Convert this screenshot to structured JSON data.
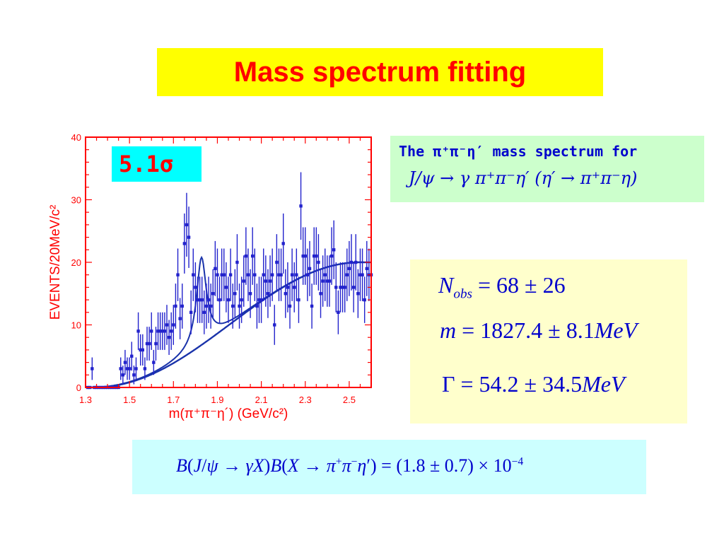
{
  "title": "Mass spectrum fitting",
  "significance": "5.1σ",
  "description": {
    "line1": "The π⁺π⁻η′ mass spectrum for",
    "line2": "J/ψ → γ π⁺π⁻η′   (η′ → π⁺π⁻η)"
  },
  "results": {
    "nobs": "N_obs = 68 ± 26",
    "mass": "m = 1827.4 ± 8.1 MeV",
    "width": "Γ = 54.2 ± 34.5 MeV"
  },
  "branching": "B(J/ψ → γX) B(X → π⁺π⁻η′) = (1.8 ± 0.7) × 10⁻⁴",
  "colors": {
    "title_bg": "#ffff00",
    "title_text": "#ff0000",
    "axis": "#ff0000",
    "data": "#2222cc",
    "fit": "#1a33aa"
  },
  "chart_data": {
    "type": "scatter",
    "xlabel": "m(π⁺π⁻η´)  (GeV/c²)",
    "ylabel": "EVENTS/20MeV/c²",
    "xlim": [
      1.3,
      2.6
    ],
    "ylim": [
      0,
      40
    ],
    "xticks": [
      1.3,
      1.5,
      1.7,
      1.9,
      2.1,
      2.3,
      2.5
    ],
    "yticks": [
      0,
      10,
      20,
      30,
      40
    ],
    "x": [
      1.31,
      1.32,
      1.33,
      1.34,
      1.35,
      1.36,
      1.37,
      1.38,
      1.39,
      1.4,
      1.41,
      1.42,
      1.43,
      1.44,
      1.45,
      1.46,
      1.47,
      1.48,
      1.49,
      1.5,
      1.51,
      1.52,
      1.53,
      1.54,
      1.55,
      1.56,
      1.57,
      1.58,
      1.59,
      1.6,
      1.61,
      1.62,
      1.63,
      1.64,
      1.65,
      1.66,
      1.67,
      1.68,
      1.69,
      1.7,
      1.71,
      1.72,
      1.73,
      1.74,
      1.75,
      1.76,
      1.77,
      1.78,
      1.79,
      1.8,
      1.81,
      1.82,
      1.83,
      1.84,
      1.85,
      1.86,
      1.87,
      1.88,
      1.89,
      1.9,
      1.91,
      1.92,
      1.93,
      1.94,
      1.95,
      1.96,
      1.97,
      1.98,
      1.99,
      2.0,
      2.01,
      2.02,
      2.03,
      2.04,
      2.05,
      2.06,
      2.07,
      2.08,
      2.09,
      2.1,
      2.11,
      2.12,
      2.13,
      2.14,
      2.15,
      2.16,
      2.17,
      2.18,
      2.19,
      2.2,
      2.21,
      2.22,
      2.23,
      2.24,
      2.25,
      2.26,
      2.27,
      2.28,
      2.29,
      2.3,
      2.31,
      2.32,
      2.33,
      2.34,
      2.35,
      2.36,
      2.37,
      2.38,
      2.39,
      2.4,
      2.41,
      2.42,
      2.43,
      2.44,
      2.45,
      2.46,
      2.47,
      2.48,
      2.49,
      2.5,
      2.51,
      2.52,
      2.53,
      2.54,
      2.55,
      2.56,
      2.57,
      2.58,
      2.59,
      2.6
    ],
    "series": [
      {
        "values": [
          0,
          0,
          3,
          0,
          0,
          0,
          0,
          0,
          0,
          0,
          0,
          0,
          0,
          0,
          0,
          3,
          2,
          4,
          3,
          3,
          5,
          2,
          3,
          9,
          6,
          6,
          3,
          7,
          7,
          9,
          4,
          7,
          9,
          9,
          9,
          9,
          10,
          8,
          9,
          10,
          13,
          18,
          11,
          13,
          23,
          26,
          24,
          12,
          18,
          16,
          14,
          14,
          14,
          12,
          13,
          14,
          13,
          15,
          19,
          18,
          14,
          18,
          18,
          16,
          14,
          18,
          13,
          15,
          20,
          13,
          14,
          17,
          21,
          18,
          15,
          21,
          18,
          13,
          14,
          14,
          18,
          17,
          15,
          17,
          18,
          10,
          20,
          18,
          18,
          23,
          15,
          16,
          13,
          18,
          16,
          18,
          14,
          29,
          21,
          21,
          18,
          19,
          13,
          21,
          21,
          20,
          15,
          17,
          18,
          17,
          17,
          21,
          22,
          16,
          12,
          16,
          16,
          16,
          18,
          19,
          20,
          16,
          20,
          15,
          18,
          18,
          14,
          19,
          18,
          18
        ],
        "yerr": [
          0.5,
          0.5,
          1.8,
          0.5,
          0.5,
          0.5,
          0.5,
          0.5,
          0.5,
          0.5,
          0.5,
          0.5,
          0.5,
          0.5,
          0.5,
          1.8,
          1.5,
          2.0,
          1.8,
          1.8,
          2.3,
          1.5,
          1.8,
          3.0,
          2.5,
          2.5,
          1.8,
          2.7,
          2.7,
          3.0,
          2.0,
          2.7,
          3.0,
          3.0,
          3.0,
          3.0,
          3.2,
          2.8,
          3.0,
          3.2,
          3.6,
          4.2,
          3.3,
          3.6,
          4.8,
          5.1,
          4.9,
          3.5,
          4.2,
          4.0,
          3.7,
          3.7,
          3.7,
          3.5,
          3.6,
          3.7,
          3.6,
          3.9,
          4.4,
          4.2,
          3.7,
          4.2,
          4.2,
          4.0,
          3.7,
          4.2,
          3.6,
          3.9,
          4.5,
          3.6,
          3.7,
          4.1,
          4.6,
          4.2,
          3.9,
          4.6,
          4.2,
          3.6,
          3.7,
          3.7,
          4.2,
          4.1,
          3.9,
          4.1,
          4.2,
          3.2,
          4.5,
          4.2,
          4.2,
          4.8,
          3.9,
          4.0,
          3.6,
          4.2,
          4.0,
          4.2,
          3.7,
          5.4,
          4.6,
          4.6,
          4.2,
          4.4,
          3.6,
          4.6,
          4.6,
          4.5,
          3.9,
          4.1,
          4.2,
          4.1,
          4.1,
          4.6,
          4.7,
          4.0,
          3.5,
          4.0,
          4.0,
          4.0,
          4.2,
          4.4,
          4.5,
          4.0,
          4.5,
          3.9,
          4.2,
          4.2,
          3.7,
          4.4,
          4.2,
          4.2
        ]
      }
    ],
    "fit": {
      "resonance": {
        "mass": 1.8274,
        "width": 0.0542,
        "peak_height": 14
      },
      "background": {
        "threshold": 1.33,
        "plateau": 20,
        "plateau_x": 2.55
      }
    }
  }
}
